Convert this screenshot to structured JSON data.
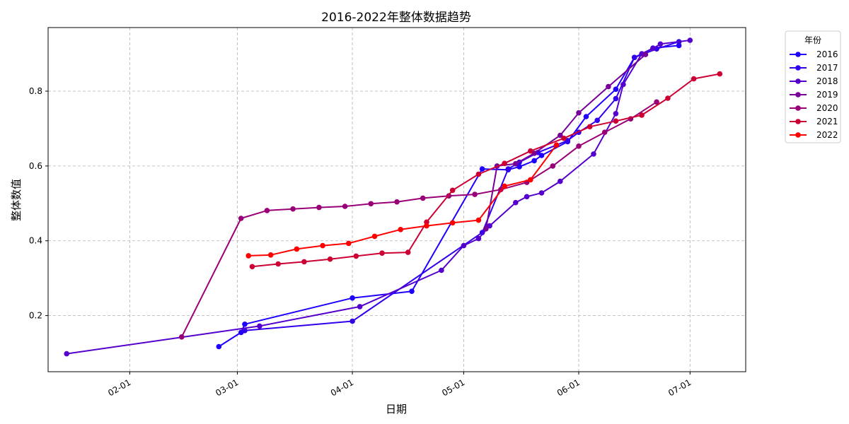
{
  "chart_data": {
    "type": "line",
    "title": "2016-2022年整体数据趋势",
    "xlabel": "日期",
    "ylabel": "整体数值",
    "x_axis": "date (month-day, all years aligned to one calendar year)",
    "xlim": [
      "01-10",
      "07-16"
    ],
    "ylim": [
      0.05,
      0.97
    ],
    "x_ticks": [
      "02-01",
      "03-01",
      "04-01",
      "05-01",
      "06-01",
      "07-01"
    ],
    "y_ticks": [
      0.2,
      0.4,
      0.6,
      0.8
    ],
    "grid": true,
    "legend": {
      "title": "年份",
      "placement": "outside-top-right"
    },
    "series": [
      {
        "name": "2016",
        "color": "#1f00ff",
        "points": [
          [
            "02-25",
            0.117
          ],
          [
            "03-02",
            0.155
          ],
          [
            "03-03",
            0.177
          ],
          [
            "04-01",
            0.247
          ],
          [
            "04-17",
            0.265
          ],
          [
            "05-06",
            0.592
          ],
          [
            "05-13",
            0.59
          ],
          [
            "05-16",
            0.598
          ],
          [
            "05-20",
            0.614
          ],
          [
            "05-22",
            0.628
          ],
          [
            "05-29",
            0.665
          ],
          [
            "06-03",
            0.732
          ],
          [
            "06-11",
            0.805
          ],
          [
            "06-16",
            0.89
          ],
          [
            "06-21",
            0.915
          ],
          [
            "06-28",
            0.922
          ]
        ]
      },
      {
        "name": "2017",
        "color": "#3300ee",
        "points": [
          [
            "03-03",
            0.16
          ],
          [
            "04-01",
            0.185
          ],
          [
            "05-06",
            0.422
          ],
          [
            "05-13",
            0.592
          ],
          [
            "05-16",
            0.61
          ],
          [
            "05-21",
            0.636
          ],
          [
            "05-29",
            0.668
          ],
          [
            "06-01",
            0.69
          ],
          [
            "06-06",
            0.722
          ],
          [
            "06-11",
            0.78
          ],
          [
            "06-16",
            0.89
          ],
          [
            "06-22",
            0.913
          ],
          [
            "06-28",
            0.932
          ]
        ]
      },
      {
        "name": "2018",
        "color": "#5500cc",
        "points": [
          [
            "01-15",
            0.098
          ],
          [
            "03-07",
            0.172
          ],
          [
            "04-03",
            0.224
          ],
          [
            "04-25",
            0.321
          ],
          [
            "05-01",
            0.387
          ],
          [
            "05-05",
            0.406
          ],
          [
            "05-08",
            0.44
          ],
          [
            "05-15",
            0.502
          ],
          [
            "05-18",
            0.518
          ],
          [
            "05-22",
            0.528
          ],
          [
            "05-27",
            0.559
          ],
          [
            "06-05",
            0.632
          ],
          [
            "06-11",
            0.74
          ],
          [
            "06-13",
            0.818
          ],
          [
            "06-18",
            0.9
          ],
          [
            "06-21",
            0.914
          ],
          [
            "06-23",
            0.926
          ],
          [
            "07-01",
            0.936
          ]
        ]
      },
      {
        "name": "2019",
        "color": "#770099",
        "points": [
          [
            "05-07",
            0.432
          ],
          [
            "05-10",
            0.6
          ],
          [
            "05-15",
            0.606
          ],
          [
            "05-20",
            0.634
          ],
          [
            "05-27",
            0.682
          ],
          [
            "06-01",
            0.742
          ],
          [
            "06-09",
            0.812
          ],
          [
            "06-19",
            0.898
          ]
        ]
      },
      {
        "name": "2020",
        "color": "#990077",
        "points": [
          [
            "02-15",
            0.143
          ],
          [
            "03-02",
            0.46
          ],
          [
            "03-09",
            0.481
          ],
          [
            "03-16",
            0.485
          ],
          [
            "03-23",
            0.489
          ],
          [
            "03-30",
            0.492
          ],
          [
            "04-06",
            0.499
          ],
          [
            "04-13",
            0.504
          ],
          [
            "04-20",
            0.514
          ],
          [
            "04-27",
            0.52
          ],
          [
            "05-04",
            0.524
          ],
          [
            "05-11",
            0.537
          ],
          [
            "05-18",
            0.556
          ],
          [
            "05-25",
            0.6
          ],
          [
            "06-01",
            0.653
          ],
          [
            "06-08",
            0.69
          ],
          [
            "06-15",
            0.726
          ],
          [
            "06-22",
            0.771
          ]
        ]
      },
      {
        "name": "2021",
        "color": "#cc0033",
        "points": [
          [
            "03-05",
            0.331
          ],
          [
            "03-12",
            0.338
          ],
          [
            "03-19",
            0.344
          ],
          [
            "03-26",
            0.351
          ],
          [
            "04-02",
            0.359
          ],
          [
            "04-09",
            0.367
          ],
          [
            "04-16",
            0.369
          ],
          [
            "04-21",
            0.45
          ],
          [
            "04-28",
            0.535
          ],
          [
            "05-05",
            0.578
          ],
          [
            "05-12",
            0.607
          ],
          [
            "05-19",
            0.64
          ],
          [
            "05-28",
            0.674
          ],
          [
            "06-04",
            0.705
          ],
          [
            "06-11",
            0.72
          ],
          [
            "06-18",
            0.736
          ],
          [
            "06-25",
            0.781
          ],
          [
            "07-02",
            0.833
          ],
          [
            "07-09",
            0.846
          ]
        ]
      },
      {
        "name": "2022",
        "color": "#ff0000",
        "points": [
          [
            "03-04",
            0.36
          ],
          [
            "03-10",
            0.362
          ],
          [
            "03-17",
            0.378
          ],
          [
            "03-24",
            0.387
          ],
          [
            "03-31",
            0.393
          ],
          [
            "04-07",
            0.412
          ],
          [
            "04-14",
            0.43
          ],
          [
            "04-21",
            0.44
          ],
          [
            "04-28",
            0.448
          ],
          [
            "05-05",
            0.455
          ],
          [
            "05-12",
            0.546
          ],
          [
            "05-19",
            0.563
          ],
          [
            "05-26",
            0.656
          ]
        ]
      }
    ]
  }
}
